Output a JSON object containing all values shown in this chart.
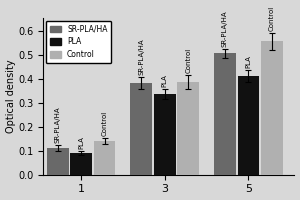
{
  "groups": [
    "1",
    "3",
    "5"
  ],
  "series": {
    "SR-PLA/HA": {
      "values": [
        0.11,
        0.38,
        0.505
      ],
      "errors": [
        0.012,
        0.025,
        0.02
      ],
      "color": "#696969"
    },
    "PLA": {
      "values": [
        0.09,
        0.335,
        0.41
      ],
      "errors": [
        0.01,
        0.02,
        0.025
      ],
      "color": "#111111"
    },
    "Control": {
      "values": [
        0.14,
        0.385,
        0.555
      ],
      "errors": [
        0.012,
        0.03,
        0.035
      ],
      "color": "#b0b0b0"
    }
  },
  "ylabel": "Optical density",
  "ylim": [
    0,
    0.65
  ],
  "yticks": [
    0.0,
    0.1,
    0.2,
    0.3,
    0.4,
    0.5,
    0.6
  ],
  "bar_width": 0.28,
  "group_centers": [
    1,
    2,
    3
  ],
  "xtick_labels": [
    "1",
    "3",
    "5"
  ],
  "legend_order": [
    "SR-PLA/HA",
    "PLA",
    "Control"
  ],
  "background_color": "#d8d8d8",
  "bar_label_fontsize": 5.0,
  "bar_label_rotation": 90
}
